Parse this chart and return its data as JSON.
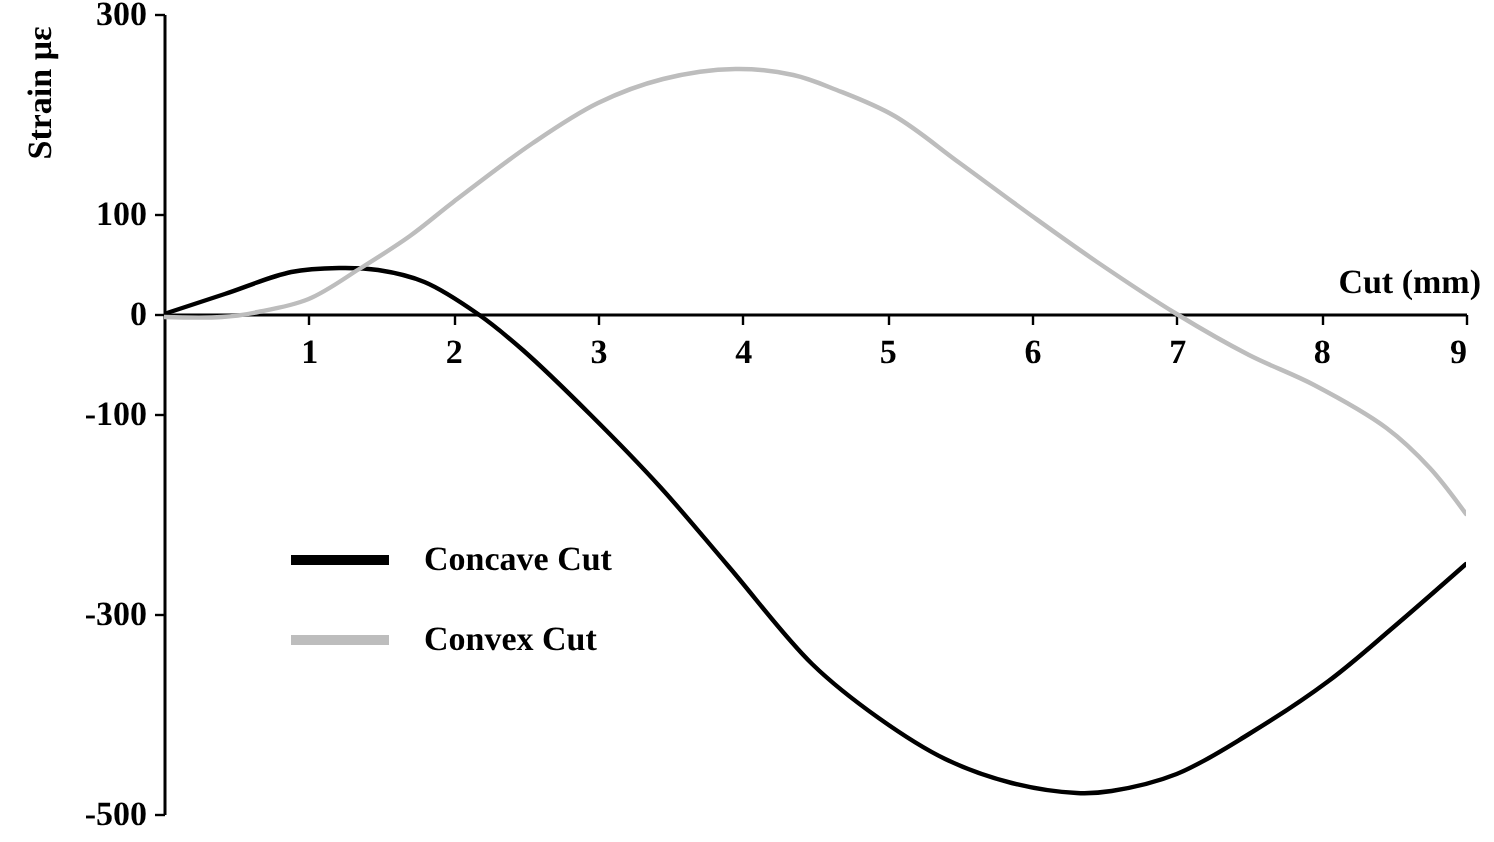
{
  "chart_data": {
    "type": "line",
    "xlabel": "Cut (mm)",
    "ylabel": "Strain με",
    "xlim": [
      0,
      9
    ],
    "ylim": [
      -500,
      300
    ],
    "xticks": [
      1,
      2,
      3,
      4,
      5,
      6,
      7,
      8,
      9
    ],
    "yticks": [
      300,
      100,
      0,
      -100,
      -300,
      -500
    ],
    "legend": "bottom left",
    "series": [
      {
        "name": "Concave Cut",
        "color": "#000000",
        "x": [
          0,
          0.42,
          0.88,
          1.21,
          1.48,
          1.8,
          2.17,
          2.48,
          2.95,
          3.43,
          3.9,
          4.48,
          4.94,
          5.4,
          5.86,
          6.31,
          6.55,
          7.0,
          7.5,
          8.05,
          8.5,
          9.0
        ],
        "values": [
          0,
          20,
          42,
          46,
          44,
          32,
          0,
          -36,
          -101,
          -173,
          -252,
          -350,
          -404,
          -445,
          -469,
          -479,
          -477,
          -460,
          -420,
          -367,
          -313,
          -250
        ]
      },
      {
        "name": "Convex Cut",
        "color": "#bdbdbd",
        "x": [
          0,
          0.4,
          0.65,
          1.0,
          1.35,
          1.7,
          2.0,
          2.55,
          3.0,
          3.45,
          3.95,
          4.35,
          4.65,
          5.05,
          5.5,
          6.0,
          6.45,
          7.0,
          7.5,
          7.95,
          8.45,
          8.75,
          9.0
        ],
        "values": [
          -3,
          -3,
          2,
          15,
          45,
          78,
          112,
          171,
          211,
          235,
          245,
          239,
          224,
          198,
          151,
          98,
          52,
          0,
          -41,
          -71,
          -114,
          -154,
          -200
        ]
      }
    ]
  }
}
